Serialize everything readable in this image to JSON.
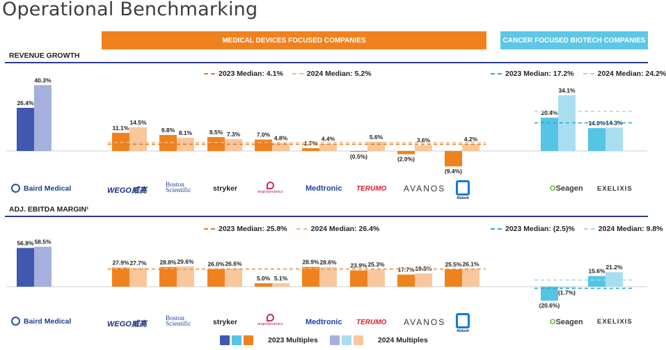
{
  "title": "Operational Benchmarking",
  "bands": {
    "medical": "MEDICAL DEVICES  FOCUSED COMPANIES",
    "cancer": "CANCER FOCUSED BIOTECH COMPANIES"
  },
  "colors": {
    "baird23": "#4058b0",
    "baird24": "#a5b0dc",
    "med23": "#f0821e",
    "med24": "#f8c79c",
    "can23": "#56c4e4",
    "can24": "#a8def0",
    "rule": "#2b3a8c"
  },
  "companies": {
    "baird": "Baird Medical",
    "wego": "WEGO威高",
    "boston_1": "Boston",
    "boston_2": "Scientific",
    "stryker": "stryker",
    "angio": "angiodynamics",
    "medtronic": "Medtronic",
    "terumo": "TERUMO",
    "avanos": "AVANOS",
    "abbott": "Abbott",
    "seagen_o": "O",
    "seagen": "Seagen",
    "exelixis": "EXELIXIS"
  },
  "sections": {
    "revenue": {
      "label": "REVENUE GROWTH",
      "med_2023_median": "2023 Median: 4.1%",
      "med_2024_median": "2024 Median: 5.2%",
      "can_2023_median": "2023 Median: 17.2%",
      "can_2024_median": "2024 Median: 24.2%"
    },
    "ebitda": {
      "label": "ADJ. EBITDA MARGIN¹",
      "med_2023_median": "2023 Median: 25.8%",
      "med_2024_median": "2024 Median: 26.4%",
      "can_2023_median": "2023 Median: (2.5)%",
      "can_2024_median": "2024 Median: 9.8%"
    }
  },
  "legend": {
    "y2023": "2023 Multiples",
    "y2024": "2024 Multiples"
  },
  "chart_data": [
    {
      "type": "bar",
      "title": "REVENUE GROWTH",
      "categories": [
        "Baird Medical",
        "WEGO",
        "Boston Scientific",
        "Stryker",
        "AngioDynamics",
        "Medtronic",
        "Terumo",
        "Avanos",
        "Abbott",
        "Seagen",
        "Exelixis"
      ],
      "series": [
        {
          "name": "2023",
          "values": [
            26.4,
            11.1,
            9.8,
            8.5,
            7.0,
            1.7,
            -0.5,
            -2.0,
            -9.4,
            20.4,
            14.0
          ],
          "labels": [
            "26.4%",
            "11.1%",
            "9.8%",
            "8.5%",
            "7.0%",
            "1.7%",
            "(0.5%)",
            "(2.0%)",
            "(9.4%)",
            "20.4%",
            "14.0%"
          ]
        },
        {
          "name": "2024",
          "values": [
            40.3,
            14.5,
            8.1,
            7.3,
            4.8,
            4.4,
            5.6,
            3.6,
            4.2,
            34.1,
            14.3
          ],
          "labels": [
            "40.3%",
            "14.5%",
            "8.1%",
            "7.3%",
            "4.8%",
            "4.4%",
            "5.6%",
            "3.6%",
            "4.2%",
            "34.1%",
            "14.3%"
          ]
        }
      ],
      "medians": {
        "medical_2023": 4.1,
        "medical_2024": 5.2,
        "cancer_2023": 17.2,
        "cancer_2024": 24.2
      }
    },
    {
      "type": "bar",
      "title": "ADJ. EBITDA MARGIN",
      "categories": [
        "Baird Medical",
        "WEGO",
        "Boston Scientific",
        "Stryker",
        "AngioDynamics",
        "Medtronic",
        "Terumo",
        "Avanos",
        "Abbott",
        "Seagen",
        "Exelixis"
      ],
      "series": [
        {
          "name": "2023",
          "values": [
            56.8,
            27.9,
            28.8,
            26.0,
            5.0,
            28.9,
            23.9,
            17.7,
            25.5,
            -20.6,
            15.6
          ],
          "labels": [
            "56.8%",
            "27.9%",
            "28.8%",
            "26.0%",
            "5.0%",
            "28.9%",
            "23.9%",
            "17.7%",
            "25.5%",
            "(20.6%)",
            "15.6%"
          ]
        },
        {
          "name": "2024",
          "values": [
            58.5,
            27.7,
            29.6,
            26.6,
            5.1,
            28.6,
            25.3,
            19.5,
            26.1,
            -1.7,
            21.2
          ],
          "labels": [
            "58.5%",
            "27.7%",
            "29.6%",
            "26.6%",
            "5.1%",
            "28.6%",
            "25.3%",
            "19.5%",
            "26.1%",
            "(1.7%)",
            "21.2%"
          ]
        }
      ],
      "medians": {
        "medical_2023": 25.8,
        "medical_2024": 26.4,
        "cancer_2023": -2.5,
        "cancer_2024": 9.8
      }
    }
  ]
}
